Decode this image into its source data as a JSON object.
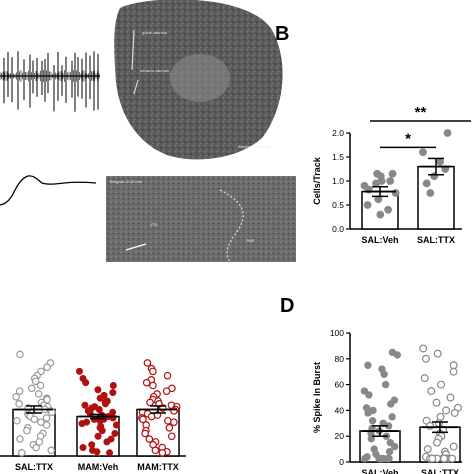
{
  "panels": {
    "B": {
      "letter": "B"
    },
    "D": {
      "letter": "D"
    }
  },
  "histology": {
    "top_labels": [
      "guide cannula",
      "infusion cannula",
      "Bregma -2.76 mm"
    ],
    "bottom_labels": [
      "Bregma -5.40 mm",
      "VTA",
      "SNR"
    ]
  },
  "chart_data": [
    {
      "id": "B",
      "type": "bar",
      "ylabel": "Cells/Track",
      "ylim": [
        0,
        2.0
      ],
      "yticks": [
        0.0,
        0.5,
        1.0,
        1.5,
        2.0
      ],
      "categories": [
        "SAL:Veh",
        "SAL:TTX"
      ],
      "values": [
        0.78,
        1.3
      ],
      "sem": [
        0.1,
        0.17
      ],
      "points": [
        [
          1.15,
          1.15,
          1.1,
          1.0,
          1.0,
          0.95,
          0.9,
          0.82,
          0.75,
          0.62,
          0.5,
          0.4,
          0.3
        ],
        [
          2.0,
          1.6,
          1.4,
          1.25,
          1.1,
          0.95,
          0.75
        ]
      ],
      "point_colors": [
        "#888888",
        "#888888"
      ],
      "significance": [
        {
          "from": "SAL:Veh",
          "to": "SAL:TTX",
          "label": "*",
          "y": 1.7
        },
        {
          "from": "SAL:Veh",
          "to": "SAL:TTX",
          "label": "**",
          "y": 2.25
        }
      ]
    },
    {
      "id": "C",
      "type": "bar",
      "ylim": [
        0,
        1.0
      ],
      "categories": [
        "SAL:TTX",
        "MAM:Veh",
        "MAM:TTX"
      ],
      "values": [
        0.33,
        0.28,
        0.33
      ],
      "sem": [
        0.025,
        0.015,
        0.025
      ],
      "point_colors": [
        "#9a9a9a",
        "#b01010",
        "#b01010"
      ],
      "point_filled": [
        false,
        true,
        false
      ],
      "points": [
        [
          0.72,
          0.66,
          0.63,
          0.6,
          0.57,
          0.55,
          0.53,
          0.5,
          0.48,
          0.46,
          0.44,
          0.42,
          0.41,
          0.4,
          0.38,
          0.37,
          0.36,
          0.35,
          0.34,
          0.33,
          0.32,
          0.31,
          0.3,
          0.29,
          0.28,
          0.27,
          0.26,
          0.25,
          0.24,
          0.22,
          0.2,
          0.18,
          0.16,
          0.14,
          0.12,
          0.1,
          0.08,
          0.06,
          0.04,
          0.02
        ],
        [
          0.6,
          0.55,
          0.52,
          0.5,
          0.47,
          0.45,
          0.43,
          0.41,
          0.39,
          0.38,
          0.37,
          0.36,
          0.35,
          0.34,
          0.33,
          0.32,
          0.31,
          0.3,
          0.29,
          0.28,
          0.28,
          0.27,
          0.26,
          0.26,
          0.25,
          0.24,
          0.23,
          0.22,
          0.21,
          0.2,
          0.18,
          0.16,
          0.14,
          0.12,
          0.1,
          0.08,
          0.06,
          0.04,
          0.03,
          0.02
        ],
        [
          0.66,
          0.62,
          0.6,
          0.57,
          0.54,
          0.52,
          0.5,
          0.48,
          0.46,
          0.44,
          0.42,
          0.4,
          0.39,
          0.38,
          0.37,
          0.36,
          0.35,
          0.34,
          0.33,
          0.32,
          0.31,
          0.3,
          0.29,
          0.28,
          0.27,
          0.26,
          0.25,
          0.24,
          0.22,
          0.2,
          0.18,
          0.16,
          0.14,
          0.12,
          0.1,
          0.08,
          0.06,
          0.04,
          0.03,
          0.02
        ]
      ]
    },
    {
      "id": "D",
      "type": "bar",
      "ylabel": "% Spike In Burst",
      "ylim": [
        0,
        100
      ],
      "yticks": [
        0,
        20,
        40,
        60,
        80,
        100
      ],
      "categories": [
        "SAL:Veh",
        "SAL:TTX"
      ],
      "values": [
        24,
        27
      ],
      "sem": [
        4,
        4
      ],
      "point_colors": [
        "#888888",
        "#888888"
      ],
      "point_filled": [
        true,
        false
      ],
      "points": [
        [
          85,
          83,
          75,
          72,
          68,
          60,
          55,
          52,
          48,
          45,
          42,
          40,
          38,
          35,
          32,
          30,
          28,
          26,
          24,
          22,
          20,
          18,
          15,
          12,
          10,
          8,
          6,
          4,
          2,
          1,
          0,
          0,
          0,
          0,
          0,
          0
        ],
        [
          88,
          84,
          80,
          75,
          70,
          65,
          60,
          55,
          50,
          46,
          42,
          40,
          38,
          35,
          32,
          30,
          28,
          25,
          22,
          20,
          18,
          15,
          12,
          10,
          8,
          6,
          4,
          2,
          1,
          0,
          0,
          0,
          0,
          0,
          0,
          0
        ]
      ]
    }
  ]
}
